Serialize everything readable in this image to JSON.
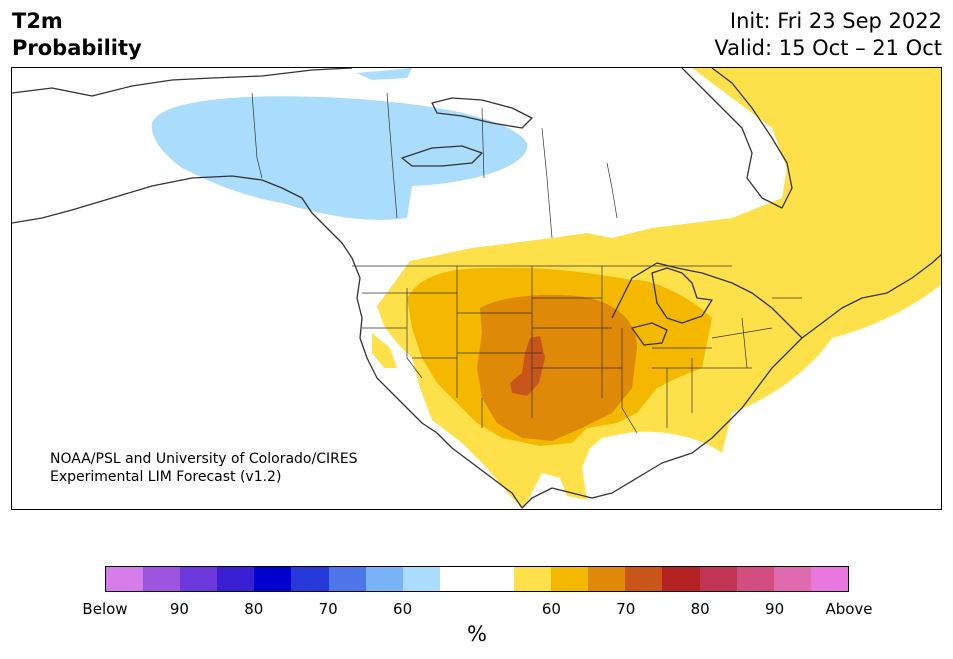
{
  "title": {
    "line1": "T2m",
    "line2": "Probability"
  },
  "dates": {
    "init": "Init: Fri 23 Sep 2022",
    "valid": "Valid: 15 Oct – 21 Oct"
  },
  "credit": {
    "line1": "NOAA/PSL and University of Colorado/CIRES",
    "line2": "Experimental LIM Forecast (v1.2)"
  },
  "colorbar": {
    "colors": [
      "#d57ce8",
      "#9d55e0",
      "#6d38d9",
      "#3a1fd2",
      "#0000cc",
      "#2638d8",
      "#4f76e9",
      "#78b2f7",
      "#aadcfc",
      "#ffffff",
      "#ffffff",
      "#fee14a",
      "#f4b800",
      "#df8908",
      "#c8561a",
      "#b22222",
      "#c23456",
      "#d24e80",
      "#e06ab0",
      "#e878e0"
    ],
    "tick_labels": [
      "Below",
      "90",
      "80",
      "70",
      "60",
      "60",
      "70",
      "80",
      "90",
      "Above"
    ],
    "tick_index": [
      0,
      2,
      4,
      6,
      8,
      12,
      14,
      16,
      18,
      20
    ],
    "unit": "%"
  }
}
